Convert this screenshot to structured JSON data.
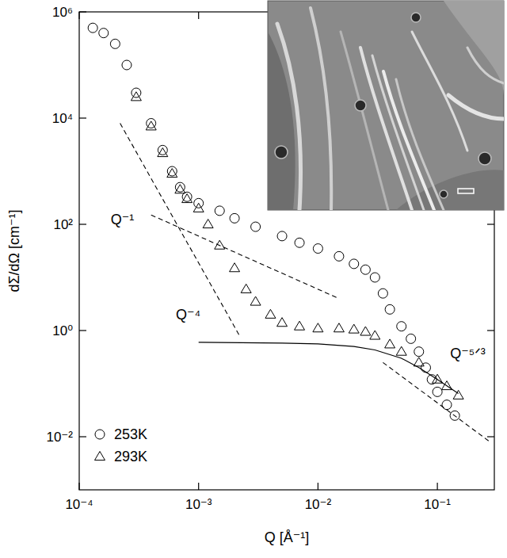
{
  "chart_data": {
    "type": "scatter",
    "x_label": "Q [Å⁻¹]",
    "y_label": "dΣ/dΩ [cm⁻¹]",
    "log": true,
    "grid": false,
    "legend": "lower left",
    "xlim": [
      0.0001,
      0.3
    ],
    "ylim": [
      0.001,
      1000000
    ],
    "xticks": [
      {
        "value": 0.0001,
        "label": "10⁻⁴"
      },
      {
        "value": 0.001,
        "label": "10⁻³"
      },
      {
        "value": 0.01,
        "label": "10⁻²"
      },
      {
        "value": 0.1,
        "label": "10⁻¹"
      }
    ],
    "yticks": [
      {
        "value": 0.01,
        "label": "10⁻²"
      },
      {
        "value": 1,
        "label": "10⁰"
      },
      {
        "value": 100,
        "label": "10²"
      },
      {
        "value": 10000,
        "label": "10⁴"
      },
      {
        "value": 1000000,
        "label": "10⁶"
      }
    ],
    "series": [
      {
        "name": "253K",
        "color": "#000000",
        "marker": "circle",
        "x": [
          0.00013,
          0.00016,
          0.0002,
          0.00025,
          0.0003,
          0.0004,
          0.0005,
          0.0006,
          0.0007,
          0.0008,
          0.001,
          0.0015,
          0.002,
          0.003,
          0.005,
          0.007,
          0.01,
          0.015,
          0.02,
          0.025,
          0.03,
          0.035,
          0.04,
          0.05,
          0.06,
          0.07,
          0.08,
          0.09,
          0.1,
          0.12,
          0.14
        ],
        "values": [
          500000,
          400000,
          250000,
          100000,
          30000,
          8000,
          2500,
          1000,
          500,
          330,
          250,
          180,
          130,
          90,
          60,
          45,
          35,
          25,
          18,
          14,
          10,
          5,
          2.5,
          1.2,
          0.7,
          0.4,
          0.2,
          0.12,
          0.07,
          0.04,
          0.025
        ]
      },
      {
        "name": "293K",
        "color": "#000000",
        "marker": "triangle",
        "x": [
          0.0003,
          0.0004,
          0.0005,
          0.0006,
          0.0007,
          0.0008,
          0.001,
          0.0012,
          0.0015,
          0.002,
          0.0025,
          0.003,
          0.004,
          0.005,
          0.007,
          0.01,
          0.015,
          0.02,
          0.025,
          0.03,
          0.04,
          0.05,
          0.07,
          0.1,
          0.12,
          0.15
        ],
        "values": [
          25000,
          7000,
          2200,
          900,
          450,
          300,
          200,
          100,
          40,
          15,
          6,
          3.5,
          2,
          1.4,
          1.2,
          1.1,
          1.1,
          1.05,
          0.95,
          0.8,
          0.55,
          0.4,
          0.25,
          0.12,
          0.09,
          0.06
        ]
      }
    ],
    "fit_lines": [
      {
        "label": "Q⁻¹",
        "line_style": "dashed",
        "x": [
          0.0004,
          0.015
        ],
        "values": [
          150,
          4
        ],
        "label_x": 0.00023,
        "label_y": 100
      },
      {
        "label": "Q⁻⁴",
        "line_style": "dashed",
        "x": [
          0.00022,
          0.0022
        ],
        "values": [
          8000,
          0.8
        ],
        "label_x": 0.00082,
        "label_y": 1.6
      },
      {
        "label": "Q⁻⁵ᐟ³",
        "line_style": "dashed",
        "x": [
          0.035,
          0.28
        ],
        "values": [
          0.25,
          0.0078
        ],
        "label_x": 0.18,
        "label_y": 0.3
      },
      {
        "line_style": "solid",
        "x": [
          0.001,
          0.005,
          0.01,
          0.02,
          0.03,
          0.05,
          0.07,
          0.1,
          0.15
        ],
        "values": [
          0.6,
          0.58,
          0.56,
          0.5,
          0.43,
          0.3,
          0.2,
          0.12,
          0.065
        ]
      }
    ]
  }
}
